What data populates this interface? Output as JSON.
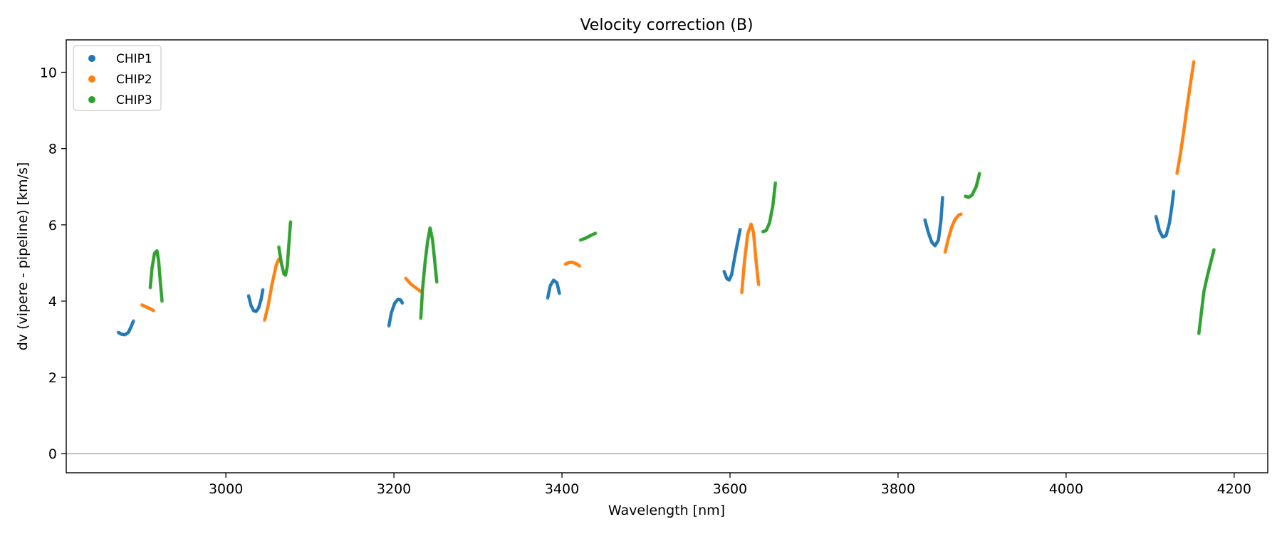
{
  "chart_data": {
    "type": "scatter",
    "title": "Velocity correction (B)",
    "xlabel": "Wavelength [nm]",
    "ylabel": "dv (vipere - pipeline) [km/s]",
    "xlim": [
      2810,
      4240
    ],
    "ylim": [
      -0.5,
      10.85
    ],
    "xticks": [
      3000,
      3200,
      3400,
      3600,
      3800,
      4000,
      4200
    ],
    "yticks": [
      0,
      2,
      4,
      6,
      8,
      10
    ],
    "zero_line": true,
    "legend_position": "upper-left",
    "colors": {
      "CHIP1": "#1f77b4",
      "CHIP2": "#ff7f0e",
      "CHIP3": "#2ca02c",
      "zero_line": "#808080"
    },
    "series": [
      {
        "name": "CHIP1",
        "segments": [
          {
            "points": [
              [
                2872,
                3.18
              ],
              [
                2876,
                3.13
              ],
              [
                2880,
                3.12
              ],
              [
                2884,
                3.18
              ],
              [
                2887,
                3.32
              ],
              [
                2890,
                3.48
              ]
            ]
          },
          {
            "points": [
              [
                3027,
                4.14
              ],
              [
                3030,
                3.88
              ],
              [
                3033,
                3.75
              ],
              [
                3036,
                3.73
              ],
              [
                3039,
                3.82
              ],
              [
                3042,
                4.05
              ],
              [
                3044,
                4.3
              ]
            ]
          },
          {
            "points": [
              [
                3194,
                3.35
              ],
              [
                3197,
                3.7
              ],
              [
                3201,
                3.95
              ],
              [
                3205,
                4.05
              ],
              [
                3208,
                4.03
              ],
              [
                3210,
                3.95
              ]
            ]
          },
          {
            "points": [
              [
                3383,
                4.08
              ],
              [
                3386,
                4.4
              ],
              [
                3390,
                4.55
              ],
              [
                3394,
                4.48
              ],
              [
                3397,
                4.2
              ]
            ]
          },
          {
            "points": [
              [
                3593,
                4.78
              ],
              [
                3596,
                4.6
              ],
              [
                3599,
                4.55
              ],
              [
                3602,
                4.7
              ],
              [
                3606,
                5.2
              ],
              [
                3610,
                5.65
              ],
              [
                3612,
                5.88
              ]
            ]
          },
          {
            "points": [
              [
                3832,
                6.13
              ],
              [
                3836,
                5.8
              ],
              [
                3840,
                5.55
              ],
              [
                3844,
                5.45
              ],
              [
                3848,
                5.6
              ],
              [
                3851,
                6.1
              ],
              [
                3853,
                6.72
              ]
            ]
          },
          {
            "points": [
              [
                4107,
                6.22
              ],
              [
                4111,
                5.85
              ],
              [
                4115,
                5.68
              ],
              [
                4119,
                5.72
              ],
              [
                4123,
                6.05
              ],
              [
                4126,
                6.5
              ],
              [
                4128,
                6.88
              ]
            ]
          }
        ]
      },
      {
        "name": "CHIP2",
        "segments": [
          {
            "points": [
              [
                2900,
                3.9
              ],
              [
                2905,
                3.85
              ],
              [
                2910,
                3.8
              ],
              [
                2914,
                3.75
              ]
            ]
          },
          {
            "points": [
              [
                3046,
                3.5
              ],
              [
                3050,
                3.85
              ],
              [
                3055,
                4.45
              ],
              [
                3060,
                4.95
              ],
              [
                3063,
                5.1
              ]
            ]
          },
          {
            "points": [
              [
                3214,
                4.6
              ],
              [
                3220,
                4.45
              ],
              [
                3226,
                4.35
              ],
              [
                3232,
                4.25
              ]
            ]
          },
          {
            "points": [
              [
                3404,
                4.97
              ],
              [
                3408,
                5.01
              ],
              [
                3412,
                5.02
              ],
              [
                3417,
                4.98
              ],
              [
                3421,
                4.92
              ]
            ]
          },
          {
            "points": [
              [
                3614,
                4.22
              ],
              [
                3617,
                5.0
              ],
              [
                3621,
                5.75
              ],
              [
                3625,
                6.02
              ],
              [
                3628,
                5.8
              ],
              [
                3631,
                5.05
              ],
              [
                3634,
                4.43
              ]
            ]
          },
          {
            "points": [
              [
                3856,
                5.28
              ],
              [
                3860,
                5.65
              ],
              [
                3864,
                5.95
              ],
              [
                3868,
                6.15
              ],
              [
                3872,
                6.25
              ],
              [
                3875,
                6.28
              ]
            ]
          },
          {
            "points": [
              [
                4132,
                7.35
              ],
              [
                4136,
                7.85
              ],
              [
                4140,
                8.45
              ],
              [
                4144,
                9.1
              ],
              [
                4148,
                9.7
              ],
              [
                4152,
                10.28
              ]
            ]
          }
        ]
      },
      {
        "name": "CHIP3",
        "segments": [
          {
            "points": [
              [
                2910,
                4.35
              ],
              [
                2912,
                4.85
              ],
              [
                2915,
                5.25
              ],
              [
                2918,
                5.32
              ],
              [
                2920,
                5.05
              ],
              [
                2922,
                4.5
              ],
              [
                2924,
                4.0
              ]
            ]
          },
          {
            "points": [
              [
                3063,
                5.42
              ],
              [
                3066,
                5.0
              ],
              [
                3069,
                4.72
              ],
              [
                3071,
                4.68
              ],
              [
                3073,
                4.9
              ],
              [
                3075,
                5.5
              ],
              [
                3077,
                6.08
              ]
            ]
          },
          {
            "points": [
              [
                3232,
                3.55
              ],
              [
                3234,
                4.3
              ],
              [
                3237,
                5.0
              ],
              [
                3240,
                5.55
              ],
              [
                3243,
                5.92
              ],
              [
                3246,
                5.6
              ],
              [
                3249,
                4.95
              ],
              [
                3251,
                4.5
              ]
            ]
          },
          {
            "points": [
              [
                3422,
                5.6
              ],
              [
                3428,
                5.65
              ],
              [
                3434,
                5.72
              ],
              [
                3440,
                5.78
              ]
            ]
          },
          {
            "points": [
              [
                3639,
                5.82
              ],
              [
                3643,
                5.85
              ],
              [
                3647,
                6.05
              ],
              [
                3651,
                6.5
              ],
              [
                3654,
                7.1
              ]
            ]
          },
          {
            "points": [
              [
                3880,
                6.75
              ],
              [
                3884,
                6.72
              ],
              [
                3888,
                6.78
              ],
              [
                3893,
                7.0
              ],
              [
                3897,
                7.35
              ]
            ]
          },
          {
            "points": [
              [
                4158,
                3.15
              ],
              [
                4161,
                3.7
              ],
              [
                4164,
                4.25
              ],
              [
                4168,
                4.65
              ],
              [
                4172,
                5.0
              ],
              [
                4176,
                5.35
              ]
            ]
          }
        ]
      }
    ]
  }
}
